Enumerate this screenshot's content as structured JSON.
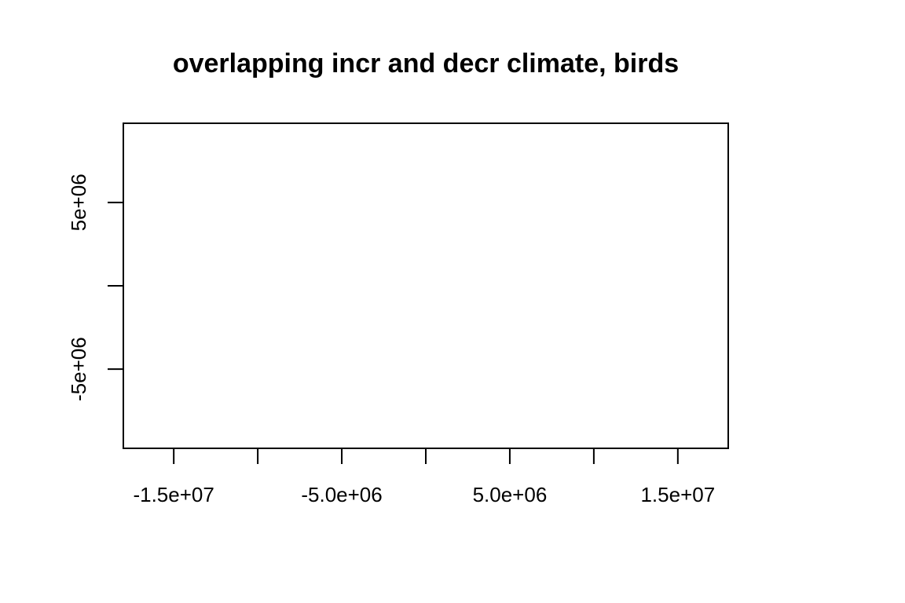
{
  "chart_data": {
    "type": "scatter",
    "title": "overlapping incr and decr climate, birds",
    "xlabel": "",
    "ylabel": "",
    "xlim": [
      -18000000,
      18000000
    ],
    "ylim": [
      -9750000,
      9750000
    ],
    "x_ticks": [
      {
        "value": -15000000,
        "label": "-1.5e+07"
      },
      {
        "value": -10000000,
        "label": ""
      },
      {
        "value": -5000000,
        "label": "-5.0e+06"
      },
      {
        "value": 0,
        "label": ""
      },
      {
        "value": 5000000,
        "label": "5.0e+06"
      },
      {
        "value": 10000000,
        "label": ""
      },
      {
        "value": 15000000,
        "label": "1.5e+07"
      }
    ],
    "y_ticks": [
      {
        "value": -5000000,
        "label": "-5e+06"
      },
      {
        "value": 0,
        "label": ""
      },
      {
        "value": 5000000,
        "label": "5e+06"
      }
    ],
    "grid": false,
    "legend": "none",
    "series": []
  }
}
